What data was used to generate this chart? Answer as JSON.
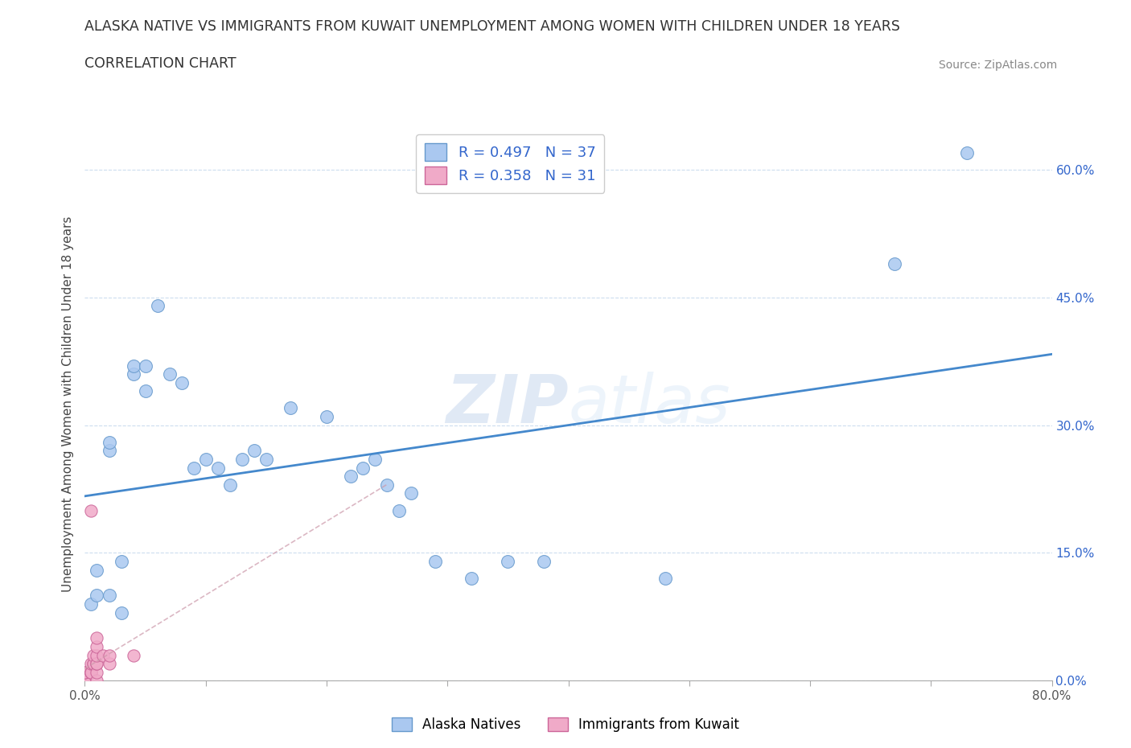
{
  "title_line1": "ALASKA NATIVE VS IMMIGRANTS FROM KUWAIT UNEMPLOYMENT AMONG WOMEN WITH CHILDREN UNDER 18 YEARS",
  "title_line2": "CORRELATION CHART",
  "source": "Source: ZipAtlas.com",
  "ylabel": "Unemployment Among Women with Children Under 18 years",
  "watermark_zip": "ZIP",
  "watermark_atlas": "atlas",
  "xlim": [
    0.0,
    0.8
  ],
  "ylim": [
    0.0,
    0.65
  ],
  "xtick_positions": [
    0.0,
    0.1,
    0.2,
    0.3,
    0.4,
    0.5,
    0.6,
    0.7,
    0.8
  ],
  "xticklabels": [
    "0.0%",
    "",
    "",
    "",
    "",
    "",
    "",
    "",
    "80.0%"
  ],
  "ytick_positions": [
    0.0,
    0.15,
    0.3,
    0.45,
    0.6
  ],
  "yticklabels_right": [
    "0.0%",
    "15.0%",
    "30.0%",
    "45.0%",
    "60.0%"
  ],
  "r_alaska": 0.497,
  "n_alaska": 37,
  "r_kuwait": 0.358,
  "n_kuwait": 31,
  "alaska_color": "#aac8f0",
  "alaska_edge": "#6699cc",
  "kuwait_color": "#f0aac8",
  "kuwait_edge": "#cc6699",
  "trendline_alaska_color": "#4488cc",
  "trendline_kuwait_color": "#cc99aa",
  "legend_r_color": "#3366cc",
  "alaska_legend_label": "Alaska Natives",
  "kuwait_legend_label": "Immigrants from Kuwait",
  "alaska_scatter_x": [
    0.005,
    0.01,
    0.01,
    0.02,
    0.02,
    0.02,
    0.03,
    0.03,
    0.04,
    0.04,
    0.05,
    0.05,
    0.06,
    0.07,
    0.08,
    0.09,
    0.1,
    0.11,
    0.12,
    0.13,
    0.14,
    0.15,
    0.17,
    0.2,
    0.22,
    0.23,
    0.24,
    0.25,
    0.26,
    0.27,
    0.29,
    0.32,
    0.35,
    0.38,
    0.48,
    0.67,
    0.73
  ],
  "alaska_scatter_y": [
    0.09,
    0.1,
    0.13,
    0.27,
    0.28,
    0.1,
    0.08,
    0.14,
    0.36,
    0.37,
    0.34,
    0.37,
    0.44,
    0.36,
    0.35,
    0.25,
    0.26,
    0.25,
    0.23,
    0.26,
    0.27,
    0.26,
    0.32,
    0.31,
    0.24,
    0.25,
    0.26,
    0.23,
    0.2,
    0.22,
    0.14,
    0.12,
    0.14,
    0.14,
    0.12,
    0.49,
    0.62
  ],
  "kuwait_scatter_x": [
    0.0,
    0.0,
    0.0,
    0.0,
    0.0,
    0.0,
    0.0,
    0.0,
    0.0,
    0.0,
    0.0,
    0.0,
    0.005,
    0.005,
    0.005,
    0.005,
    0.007,
    0.007,
    0.007,
    0.01,
    0.01,
    0.01,
    0.01,
    0.01,
    0.01,
    0.01,
    0.015,
    0.02,
    0.02,
    0.04,
    0.005
  ],
  "kuwait_scatter_y": [
    0.0,
    0.0,
    0.0,
    0.0,
    0.0,
    0.0,
    0.0,
    0.0,
    0.0,
    0.0,
    0.01,
    0.01,
    0.01,
    0.01,
    0.01,
    0.02,
    0.02,
    0.02,
    0.03,
    0.0,
    0.01,
    0.02,
    0.02,
    0.03,
    0.04,
    0.05,
    0.03,
    0.02,
    0.03,
    0.03,
    0.2
  ]
}
